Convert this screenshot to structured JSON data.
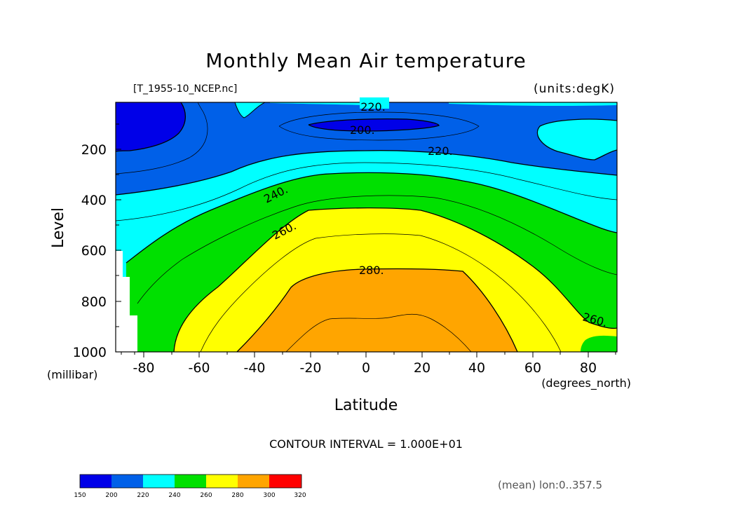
{
  "chart_data": {
    "type": "contour",
    "title": "Monthly Mean Air temperature",
    "file_label": "[T_1955-10_NCEP.nc]",
    "units_label": "(units:degK)",
    "xlabel": "Latitude",
    "x_units": "(degrees_north)",
    "ylabel": "Level",
    "y_units": "(millibar)",
    "xlim": [
      -90,
      90
    ],
    "ylim": [
      1000,
      10
    ],
    "x_ticks": [
      "-80",
      "-60",
      "-40",
      "-20",
      "0",
      "20",
      "40",
      "60",
      "80"
    ],
    "y_ticks": [
      "200",
      "400",
      "600",
      "800",
      "1000"
    ],
    "contour_interval": "CONTOUR INTERVAL = 1.000E+01",
    "footer_note": "(mean) lon:0..357.5",
    "contour_labels": [
      "220.",
      "200.",
      "220.",
      "240.",
      "260.",
      "280.",
      "260."
    ],
    "colorbar": {
      "levels": [
        "150",
        "200",
        "220",
        "240",
        "260",
        "280",
        "300",
        "320"
      ],
      "colors": [
        "#0000e8",
        "#0060e8",
        "#00ffff",
        "#00e000",
        "#ffff00",
        "#ffa500",
        "#ff0000"
      ]
    },
    "band_colors": {
      "lt200": "#0000e8",
      "200_220": "#0060e8",
      "220_240": "#00ffff",
      "240_260": "#00e000",
      "260_280": "#ffff00",
      "280_300": "#ffa500"
    }
  }
}
